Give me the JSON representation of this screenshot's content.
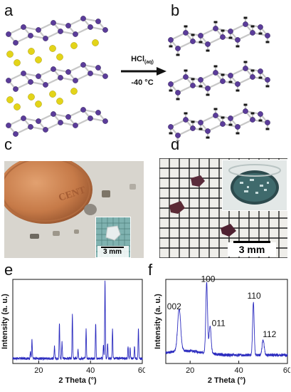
{
  "panels": {
    "a": "a",
    "b": "b",
    "c": "c",
    "d": "d",
    "e": "e",
    "f": "f"
  },
  "reaction": {
    "reagent": "HCl",
    "reagent_sub": "(aq)",
    "temperature": "-40 °C"
  },
  "scale_bars": {
    "c_inset": "3 mm",
    "d_main": "3 mm"
  },
  "colors": {
    "ge_atom": "#5b3c9a",
    "ca_atom": "#e3d419",
    "h_atom": "#1a1a1a",
    "bond": "#c7c7c7",
    "xrd_line": "#2b2bbf"
  },
  "chart_data": [
    {
      "type": "line",
      "panel": "e",
      "xlabel": "2 Theta (°)",
      "ylabel": "Intensity (a. u.)",
      "xlim": [
        10,
        60
      ],
      "xticks": [
        20,
        40,
        60
      ],
      "baseline": 0.06,
      "peaks": [
        {
          "x": 16.8,
          "h": 0.08
        },
        {
          "x": 17.4,
          "h": 0.22
        },
        {
          "x": 26.1,
          "h": 0.14
        },
        {
          "x": 28.0,
          "h": 0.42
        },
        {
          "x": 29.0,
          "h": 0.2
        },
        {
          "x": 33.0,
          "h": 0.52
        },
        {
          "x": 35.2,
          "h": 0.1
        },
        {
          "x": 38.3,
          "h": 0.35
        },
        {
          "x": 42.0,
          "h": 0.42
        },
        {
          "x": 45.0,
          "h": 0.16
        },
        {
          "x": 45.6,
          "h": 0.93
        },
        {
          "x": 46.6,
          "h": 0.18
        },
        {
          "x": 48.5,
          "h": 0.35
        },
        {
          "x": 54.5,
          "h": 0.15
        },
        {
          "x": 55.3,
          "h": 0.12
        },
        {
          "x": 57.0,
          "h": 0.14
        },
        {
          "x": 58.5,
          "h": 0.35
        }
      ]
    },
    {
      "type": "line",
      "panel": "f",
      "xlabel": "2 Theta (°)",
      "ylabel": "Intensity (a. u.)",
      "xlim": [
        10,
        60
      ],
      "xticks": [
        20,
        40,
        60
      ],
      "baseline": 0.1,
      "peaks": [
        {
          "x": 15.5,
          "h": 0.5,
          "w": 0.9,
          "label": "002"
        },
        {
          "x": 26.8,
          "h": 0.83,
          "w": 0.5,
          "label": "100"
        },
        {
          "x": 28.2,
          "h": 0.32,
          "w": 0.6,
          "label": "011"
        },
        {
          "x": 46.0,
          "h": 0.63,
          "w": 0.45,
          "label": "110"
        },
        {
          "x": 50.0,
          "h": 0.18,
          "w": 0.6,
          "label": "112"
        }
      ]
    }
  ]
}
